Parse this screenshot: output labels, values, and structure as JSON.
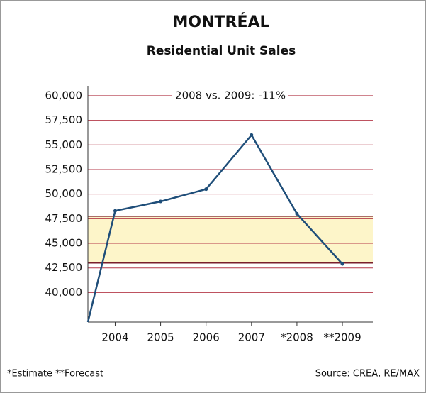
{
  "chart_data": {
    "type": "line",
    "title": "MONTRÉAL",
    "subtitle": "Residential Unit Sales",
    "annotation": "2008 vs. 2009: -11%",
    "footnote": "*Estimate **Forecast",
    "source": "Source: CREA, RE/MAX",
    "x": [
      2003.4,
      2004,
      2005,
      2006,
      2007,
      2008,
      2009
    ],
    "series": [
      {
        "name": "Residential Unit Sales",
        "color": "#1f4e79",
        "values": [
          37000,
          48300,
          49250,
          50500,
          56000,
          48000,
          42900
        ]
      }
    ],
    "xlim": [
      2003.4,
      2009.67
    ],
    "xticks": [
      2004,
      2005,
      2006,
      2007,
      {
        "value": 2008,
        "label": "*2008"
      },
      {
        "value": 2009,
        "label": "**2009"
      }
    ],
    "ylim": [
      37000,
      61000
    ],
    "yticks": [
      {
        "value": 40000,
        "label": "40,000"
      },
      {
        "value": 42500,
        "label": "42,500"
      },
      {
        "value": 45000,
        "label": "45,000"
      },
      {
        "value": 47500,
        "label": "47,500"
      },
      {
        "value": 50000,
        "label": "50,000"
      },
      {
        "value": 52500,
        "label": "52,500"
      },
      {
        "value": 55000,
        "label": "55,000"
      },
      {
        "value": 57500,
        "label": "57,500"
      },
      {
        "value": 60000,
        "label": "60,000"
      }
    ],
    "band": [
      43000,
      47750
    ],
    "band_color": "#fdf5c9",
    "grid": true,
    "grid_color": "#b53a4a"
  }
}
